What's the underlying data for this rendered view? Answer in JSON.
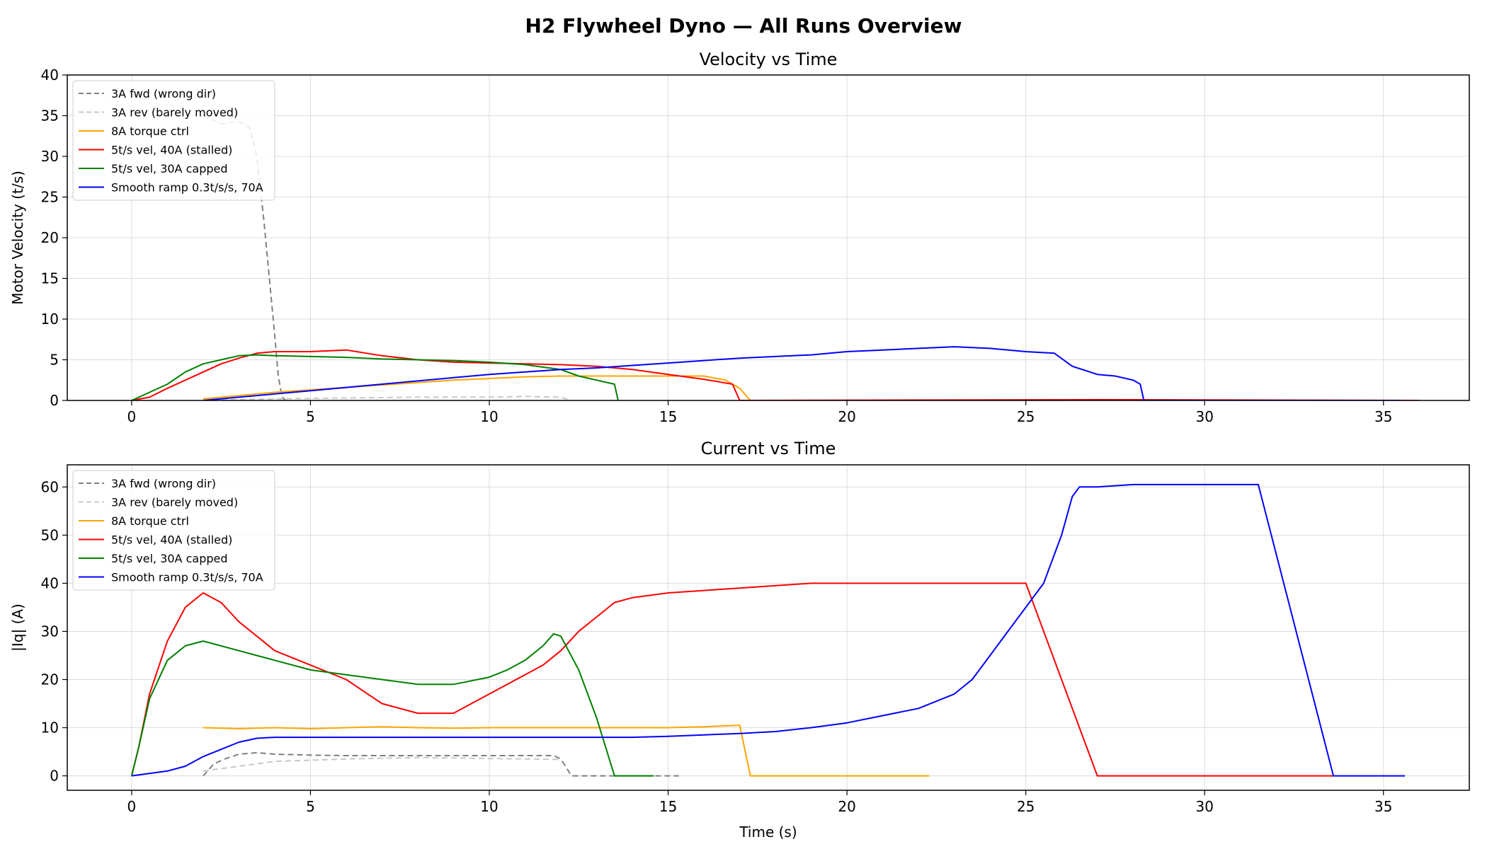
{
  "figure": {
    "title": "H2 Flywheel Dyno — All Runs Overview"
  },
  "chart_data": [
    {
      "type": "line",
      "title": "Velocity vs Time",
      "xlabel": "",
      "ylabel": "Motor Velocity (t/s)",
      "xlim": [
        -1.8,
        37.4
      ],
      "ylim": [
        0,
        40
      ],
      "xticks": [
        0,
        5,
        10,
        15,
        20,
        25,
        30,
        35
      ],
      "yticks": [
        0,
        5,
        10,
        15,
        20,
        25,
        30,
        35,
        40
      ],
      "grid": true,
      "legend_position": "upper-left",
      "series": [
        {
          "name": "3A fwd (wrong dir)",
          "color": "#808080",
          "dash": "dashed",
          "x": [
            2.0,
            2.5,
            3.0,
            3.3,
            3.5,
            3.7,
            3.85,
            4.0,
            4.1,
            4.2,
            4.3
          ],
          "y": [
            35,
            34,
            34.3,
            33.5,
            30,
            22,
            15,
            8,
            3,
            0.5,
            0
          ]
        },
        {
          "name": "3A rev (barely moved)",
          "color": "#c8c8c8",
          "dash": "dashed",
          "x": [
            2.0,
            4.0,
            6.0,
            8.0,
            10.0,
            11.0,
            12.0,
            12.3
          ],
          "y": [
            0,
            0.2,
            0.3,
            0.4,
            0.4,
            0.5,
            0.4,
            0
          ]
        },
        {
          "name": "8A torque ctrl",
          "color": "#ffa500",
          "dash": "solid",
          "x": [
            2.0,
            3.0,
            4.0,
            5.0,
            6.0,
            7.0,
            8.0,
            9.0,
            10.0,
            11.0,
            12.0,
            13.0,
            14.0,
            15.0,
            16.0,
            16.6,
            17.0,
            17.3,
            22.3
          ],
          "y": [
            0.2,
            0.6,
            1.0,
            1.3,
            1.6,
            1.9,
            2.2,
            2.5,
            2.7,
            2.9,
            3.0,
            3.0,
            3.0,
            3.0,
            3.0,
            2.5,
            1.5,
            0,
            0
          ]
        },
        {
          "name": "5t/s vel, 40A (stalled)",
          "color": "#ff0000",
          "dash": "solid",
          "x": [
            0.0,
            0.5,
            1.0,
            1.5,
            2.0,
            2.5,
            3.0,
            3.5,
            4.0,
            5.0,
            6.0,
            7.0,
            8.0,
            9.0,
            10.0,
            11.0,
            12.0,
            13.0,
            14.0,
            15.0,
            16.0,
            16.8,
            17.0,
            27.0,
            36.0
          ],
          "y": [
            0,
            0.4,
            1.5,
            2.5,
            3.5,
            4.5,
            5.2,
            5.8,
            6.0,
            6.0,
            6.2,
            5.5,
            5.0,
            4.7,
            4.6,
            4.5,
            4.4,
            4.2,
            3.8,
            3.2,
            2.6,
            2.0,
            0,
            0.1,
            0
          ]
        },
        {
          "name": "5t/s vel, 30A capped",
          "color": "#008000",
          "dash": "solid",
          "x": [
            0.0,
            0.5,
            1.0,
            1.5,
            2.0,
            2.5,
            3.0,
            3.5,
            4.0,
            5.0,
            6.0,
            7.0,
            8.0,
            9.0,
            10.0,
            11.0,
            12.0,
            12.5,
            13.0,
            13.5,
            13.6
          ],
          "y": [
            0,
            1.0,
            2.0,
            3.5,
            4.5,
            5.0,
            5.5,
            5.6,
            5.5,
            5.4,
            5.3,
            5.1,
            5.0,
            4.9,
            4.7,
            4.4,
            3.8,
            3.0,
            2.5,
            2.0,
            0
          ]
        },
        {
          "name": "Smooth ramp 0.3t/s/s, 70A",
          "color": "#0000ff",
          "dash": "solid",
          "x": [
            2.0,
            3.0,
            4.0,
            5.0,
            6.0,
            7.0,
            8.0,
            9.0,
            10.0,
            11.0,
            12.0,
            13.0,
            14.0,
            15.0,
            16.0,
            17.0,
            18.0,
            19.0,
            20.0,
            21.0,
            22.0,
            23.0,
            24.0,
            25.0,
            25.8,
            26.3,
            27.0,
            27.5,
            28.0,
            28.2,
            28.3,
            35.5
          ],
          "y": [
            0,
            0.4,
            0.8,
            1.2,
            1.6,
            2.0,
            2.4,
            2.8,
            3.2,
            3.5,
            3.8,
            4.0,
            4.3,
            4.6,
            4.9,
            5.2,
            5.4,
            5.6,
            6.0,
            6.2,
            6.4,
            6.6,
            6.4,
            6.0,
            5.8,
            4.2,
            3.2,
            3.0,
            2.5,
            2.0,
            0,
            0
          ]
        }
      ]
    },
    {
      "type": "line",
      "title": "Current vs Time",
      "xlabel": "Time (s)",
      "ylabel": "|Iq| (A)",
      "xlim": [
        -1.8,
        37.4
      ],
      "ylim": [
        -3.0,
        64.6
      ],
      "xticks": [
        0,
        5,
        10,
        15,
        20,
        25,
        30,
        35
      ],
      "yticks": [
        0,
        10,
        20,
        30,
        40,
        50,
        60
      ],
      "grid": true,
      "legend_position": "upper-left",
      "series": [
        {
          "name": "3A fwd (wrong dir)",
          "color": "#808080",
          "dash": "dashed",
          "x": [
            2.0,
            2.3,
            2.6,
            3.0,
            3.5,
            4.0,
            5.0,
            6.0,
            7.0,
            8.0,
            9.0,
            10.0,
            11.0,
            11.8,
            12.0,
            12.3,
            13.0,
            15.3
          ],
          "y": [
            0,
            2.5,
            3.5,
            4.5,
            4.8,
            4.5,
            4.3,
            4.2,
            4.2,
            4.2,
            4.2,
            4.2,
            4.2,
            4.2,
            3.5,
            0,
            0,
            0
          ]
        },
        {
          "name": "3A rev (barely moved)",
          "color": "#c8c8c8",
          "dash": "dashed",
          "x": [
            2.0,
            3.0,
            4.0,
            6.0,
            8.0,
            10.0,
            12.0
          ],
          "y": [
            1.0,
            2.0,
            3.0,
            3.5,
            3.8,
            3.6,
            3.4
          ]
        },
        {
          "name": "8A torque ctrl",
          "color": "#ffa500",
          "dash": "solid",
          "x": [
            2.0,
            3.0,
            4.0,
            5.0,
            6.0,
            7.0,
            8.0,
            9.0,
            10.0,
            11.0,
            12.0,
            13.0,
            14.0,
            15.0,
            16.0,
            17.0,
            17.3,
            22.3
          ],
          "y": [
            10.0,
            9.8,
            10.0,
            9.8,
            10.0,
            10.2,
            10.0,
            9.9,
            10.0,
            10.0,
            10.0,
            10.0,
            10.0,
            10.0,
            10.2,
            10.5,
            0,
            0
          ]
        },
        {
          "name": "5t/s vel, 40A (stalled)",
          "color": "#ff0000",
          "dash": "solid",
          "x": [
            0.0,
            0.2,
            0.5,
            1.0,
            1.5,
            2.0,
            2.5,
            3.0,
            3.5,
            4.0,
            5.0,
            6.0,
            7.0,
            8.0,
            9.0,
            10.0,
            11.0,
            11.5,
            12.0,
            12.5,
            13.0,
            13.5,
            14.0,
            15.0,
            16.0,
            17.0,
            18.0,
            19.0,
            20.0,
            21.0,
            22.0,
            23.0,
            24.0,
            25.0,
            27.0,
            33.6
          ],
          "y": [
            0,
            6,
            17,
            28,
            35,
            38,
            36,
            32,
            29,
            26,
            23,
            20,
            15,
            13,
            13,
            17,
            21,
            23,
            26,
            30,
            33,
            36,
            37,
            38,
            38.5,
            39,
            39.5,
            40,
            40,
            40,
            40,
            40,
            40,
            40,
            0,
            0
          ]
        },
        {
          "name": "5t/s vel, 30A capped",
          "color": "#008000",
          "dash": "solid",
          "x": [
            0.0,
            0.2,
            0.5,
            1.0,
            1.5,
            2.0,
            2.5,
            3.0,
            3.5,
            4.0,
            5.0,
            6.0,
            7.0,
            8.0,
            9.0,
            10.0,
            10.5,
            11.0,
            11.5,
            11.8,
            12.0,
            12.5,
            13.0,
            13.5,
            14.6
          ],
          "y": [
            0,
            6,
            16,
            24,
            27,
            28,
            27,
            26,
            25,
            24,
            22,
            21,
            20,
            19,
            19,
            20.5,
            22,
            24,
            27,
            29.5,
            29,
            22,
            12,
            0,
            0
          ]
        },
        {
          "name": "Smooth ramp 0.3t/s/s, 70A",
          "color": "#0000ff",
          "dash": "solid",
          "x": [
            0.0,
            1.0,
            1.5,
            2.0,
            2.5,
            3.0,
            3.5,
            4.0,
            5.0,
            6.0,
            7.0,
            8.0,
            9.0,
            10.0,
            11.0,
            12.0,
            13.0,
            14.0,
            15.0,
            16.0,
            17.0,
            18.0,
            19.0,
            20.0,
            21.0,
            22.0,
            23.0,
            23.5,
            24.0,
            24.5,
            25.0,
            25.5,
            26.0,
            26.3,
            26.5,
            27.0,
            28.0,
            29.0,
            30.0,
            31.0,
            31.5,
            33.6,
            35.6
          ],
          "y": [
            0,
            1.0,
            2.0,
            4.0,
            5.5,
            7.0,
            7.8,
            8.0,
            8.0,
            8.0,
            8.0,
            8.0,
            8.0,
            8.0,
            8.0,
            8.0,
            8.0,
            8.0,
            8.2,
            8.5,
            8.8,
            9.2,
            10.0,
            11.0,
            12.5,
            14.0,
            17.0,
            20.0,
            25.0,
            30.0,
            35.0,
            40.0,
            50.0,
            58.0,
            60.0,
            60.0,
            60.5,
            60.5,
            60.5,
            60.5,
            60.5,
            0,
            0
          ]
        }
      ]
    }
  ]
}
